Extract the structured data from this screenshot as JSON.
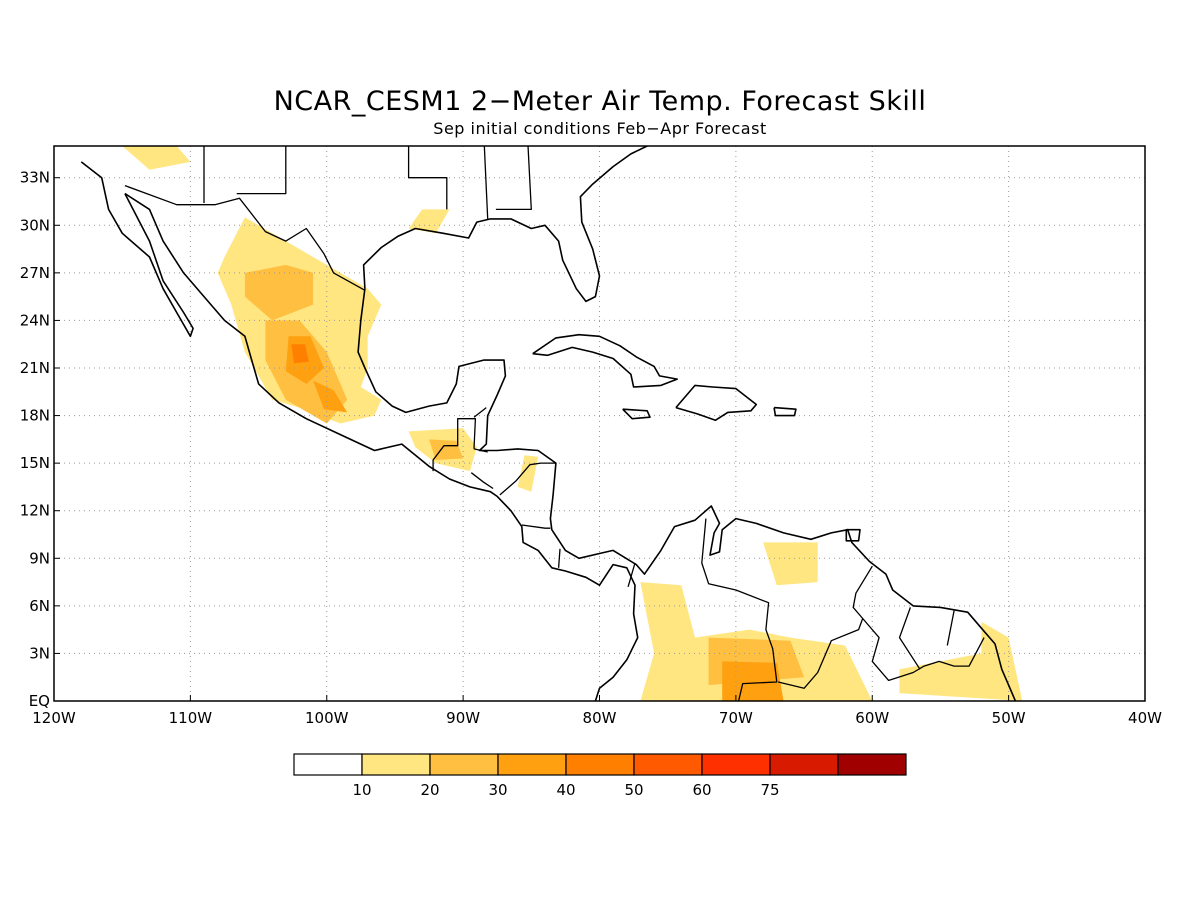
{
  "title": "NCAR_CESM1 2−Meter Air Temp. Forecast Skill",
  "subtitle": "Sep initial conditions  Feb−Apr Forecast",
  "map": {
    "lon_range": [
      -120,
      -40
    ],
    "lat_range": [
      0,
      35
    ],
    "lat_ticks": [
      {
        "value": 33,
        "label": "33N"
      },
      {
        "value": 30,
        "label": "30N"
      },
      {
        "value": 27,
        "label": "27N"
      },
      {
        "value": 24,
        "label": "24N"
      },
      {
        "value": 21,
        "label": "21N"
      },
      {
        "value": 18,
        "label": "18N"
      },
      {
        "value": 15,
        "label": "15N"
      },
      {
        "value": 12,
        "label": "12N"
      },
      {
        "value": 9,
        "label": "9N"
      },
      {
        "value": 6,
        "label": "6N"
      },
      {
        "value": 3,
        "label": "3N"
      },
      {
        "value": 0,
        "label": "EQ"
      }
    ],
    "lon_ticks": [
      {
        "value": -120,
        "label": "120W"
      },
      {
        "value": -110,
        "label": "110W"
      },
      {
        "value": -100,
        "label": "100W"
      },
      {
        "value": -90,
        "label": "90W"
      },
      {
        "value": -80,
        "label": "80W"
      },
      {
        "value": -70,
        "label": "70W"
      },
      {
        "value": -60,
        "label": "60W"
      },
      {
        "value": -50,
        "label": "50W"
      },
      {
        "value": -40,
        "label": "40W"
      }
    ],
    "grid": true
  },
  "colorbar": {
    "colors": [
      "#ffffff",
      "#ffe680",
      "#ffbf40",
      "#ffa010",
      "#ff8000",
      "#ff5a00",
      "#ff3000",
      "#d81a00",
      "#a00000"
    ],
    "labels": [
      "10",
      "20",
      "30",
      "40",
      "50",
      "60",
      "75"
    ]
  },
  "skill_regions": [
    {
      "level": 1,
      "lonlat": [
        [
          -107.5,
          28
        ],
        [
          -106,
          30.5
        ],
        [
          -103,
          29
        ],
        [
          -99,
          27
        ],
        [
          -97,
          26
        ],
        [
          -96,
          25
        ],
        [
          -97,
          23
        ],
        [
          -97,
          21
        ],
        [
          -97.5,
          19.8
        ],
        [
          -96,
          19
        ],
        [
          -96.5,
          18
        ],
        [
          -99,
          17.5
        ],
        [
          -102,
          18.5
        ],
        [
          -104,
          19
        ],
        [
          -106,
          22
        ],
        [
          -107,
          25
        ],
        [
          -108,
          27
        ]
      ]
    },
    {
      "level": 1,
      "lonlat": [
        [
          -115,
          35
        ],
        [
          -111,
          35
        ],
        [
          -110,
          34
        ],
        [
          -113,
          33.5
        ]
      ]
    },
    {
      "level": 1,
      "lonlat": [
        [
          -93,
          31
        ],
        [
          -91,
          31
        ],
        [
          -92,
          29.5
        ],
        [
          -94,
          29.8
        ]
      ]
    },
    {
      "level": 1,
      "lonlat": [
        [
          -94,
          17
        ],
        [
          -90,
          17.2
        ],
        [
          -89,
          16
        ],
        [
          -89.5,
          14.5
        ],
        [
          -92,
          15
        ],
        [
          -93.5,
          16
        ]
      ]
    },
    {
      "level": 1,
      "lonlat": [
        [
          -85.5,
          15.5
        ],
        [
          -84.5,
          15.4
        ],
        [
          -85,
          13.2
        ],
        [
          -86,
          13.5
        ]
      ]
    },
    {
      "level": 1,
      "lonlat": [
        [
          -77,
          7.5
        ],
        [
          -74,
          7.3
        ],
        [
          -73,
          4
        ],
        [
          -69,
          4.5
        ],
        [
          -66,
          4
        ],
        [
          -62,
          3.5
        ],
        [
          -60,
          0
        ],
        [
          -77,
          0
        ],
        [
          -76,
          3
        ]
      ]
    },
    {
      "level": 1,
      "lonlat": [
        [
          -68,
          10
        ],
        [
          -64,
          10
        ],
        [
          -64,
          7.5
        ],
        [
          -67,
          7.3
        ]
      ]
    },
    {
      "level": 1,
      "lonlat": [
        [
          -58,
          2
        ],
        [
          -52,
          3
        ],
        [
          -52,
          5
        ],
        [
          -50,
          4
        ],
        [
          -49,
          0
        ],
        [
          -58,
          0.5
        ]
      ]
    },
    {
      "level": 2,
      "lonlat": [
        [
          -106,
          27
        ],
        [
          -103,
          27.5
        ],
        [
          -101,
          27
        ],
        [
          -101,
          25
        ],
        [
          -104,
          24
        ],
        [
          -106,
          25.5
        ]
      ]
    },
    {
      "level": 2,
      "lonlat": [
        [
          -104.5,
          24
        ],
        [
          -102,
          24
        ],
        [
          -100,
          22
        ],
        [
          -98.5,
          19
        ],
        [
          -100,
          17.5
        ],
        [
          -103,
          19
        ],
        [
          -104.5,
          21.5
        ]
      ]
    },
    {
      "level": 2,
      "lonlat": [
        [
          -92.5,
          16.5
        ],
        [
          -90.5,
          16.4
        ],
        [
          -90,
          15.3
        ],
        [
          -92,
          15.2
        ]
      ]
    },
    {
      "level": 2,
      "lonlat": [
        [
          -72,
          4
        ],
        [
          -66,
          3.8
        ],
        [
          -65,
          1.5
        ],
        [
          -72,
          1
        ]
      ]
    },
    {
      "level": 3,
      "lonlat": [
        [
          -102.8,
          23
        ],
        [
          -101.2,
          23
        ],
        [
          -100.2,
          21
        ],
        [
          -101.5,
          20
        ],
        [
          -103,
          20.8
        ]
      ]
    },
    {
      "level": 3,
      "lonlat": [
        [
          -101,
          20.2
        ],
        [
          -99.5,
          19.6
        ],
        [
          -98.5,
          18.2
        ],
        [
          -100.2,
          18.4
        ]
      ]
    },
    {
      "level": 3,
      "lonlat": [
        [
          -71,
          2.5
        ],
        [
          -67,
          2.4
        ],
        [
          -66.5,
          0
        ],
        [
          -71,
          0
        ]
      ]
    },
    {
      "level": 4,
      "lonlat": [
        [
          -102.6,
          22.5
        ],
        [
          -101.6,
          22.5
        ],
        [
          -101.3,
          21.4
        ],
        [
          -102.4,
          21.3
        ]
      ]
    }
  ],
  "coastlines": [
    [
      [
        -118,
        34
      ],
      [
        -116.5,
        33
      ],
      [
        -116,
        31
      ],
      [
        -115,
        29.5
      ],
      [
        -113,
        28
      ],
      [
        -112,
        26
      ],
      [
        -111,
        24.5
      ],
      [
        -110,
        23
      ],
      [
        -109.8,
        23.5
      ],
      [
        -110.5,
        24.5
      ],
      [
        -112,
        26.5
      ],
      [
        -113,
        29
      ],
      [
        -114.5,
        31.5
      ],
      [
        -114.8,
        32
      ]
    ],
    [
      [
        -114.8,
        32
      ],
      [
        -113,
        31
      ],
      [
        -112,
        29
      ],
      [
        -110.5,
        27
      ],
      [
        -109,
        25.5
      ],
      [
        -107.5,
        24
      ],
      [
        -106,
        23
      ],
      [
        -105.5,
        21.5
      ],
      [
        -105,
        20
      ],
      [
        -103.5,
        18.8
      ],
      [
        -101.5,
        17.8
      ],
      [
        -99,
        16.8
      ],
      [
        -96.5,
        15.8
      ],
      [
        -94.5,
        16.2
      ],
      [
        -92.5,
        14.8
      ],
      [
        -91,
        14
      ],
      [
        -89.5,
        13.5
      ],
      [
        -88,
        13.2
      ],
      [
        -87.5,
        12.9
      ],
      [
        -86.5,
        12
      ],
      [
        -85.7,
        11
      ],
      [
        -85.6,
        10
      ],
      [
        -84.5,
        9.5
      ],
      [
        -83.5,
        8.4
      ],
      [
        -82.5,
        8.2
      ],
      [
        -81,
        7.8
      ],
      [
        -80,
        7.3
      ],
      [
        -79,
        8.6
      ],
      [
        -78,
        8.4
      ],
      [
        -77.4,
        7.3
      ],
      [
        -77.5,
        5.5
      ],
      [
        -77.2,
        4
      ],
      [
        -78,
        2.6
      ],
      [
        -79,
        1.5
      ],
      [
        -80,
        0.8
      ],
      [
        -80.3,
        0
      ]
    ],
    [
      [
        -97.2,
        26
      ],
      [
        -97.5,
        24
      ],
      [
        -97.7,
        22
      ],
      [
        -97.2,
        21
      ],
      [
        -96.4,
        19.5
      ],
      [
        -95.2,
        18.6
      ],
      [
        -94.2,
        18.2
      ],
      [
        -92.5,
        18.6
      ],
      [
        -91.2,
        18.8
      ],
      [
        -90.5,
        20
      ],
      [
        -90.3,
        21.1
      ],
      [
        -88.5,
        21.5
      ],
      [
        -87,
        21.5
      ],
      [
        -86.9,
        20.5
      ],
      [
        -87.5,
        19.3
      ],
      [
        -88.2,
        18
      ],
      [
        -88.3,
        16.2
      ],
      [
        -88.8,
        15.8
      ],
      [
        -87.5,
        15.8
      ],
      [
        -86,
        15.9
      ],
      [
        -84.5,
        15.8
      ],
      [
        -83.2,
        15
      ],
      [
        -83.4,
        13
      ],
      [
        -83.6,
        11.5
      ],
      [
        -83.5,
        10.8
      ],
      [
        -82.5,
        9.5
      ],
      [
        -81.5,
        9
      ],
      [
        -80,
        9.3
      ],
      [
        -79,
        9.5
      ],
      [
        -77.3,
        8.6
      ],
      [
        -76.7,
        8
      ],
      [
        -75.5,
        9.5
      ],
      [
        -74.5,
        11
      ],
      [
        -73,
        11.4
      ],
      [
        -71.8,
        12.3
      ],
      [
        -71.2,
        11.2
      ],
      [
        -71.6,
        10.6
      ],
      [
        -71.9,
        9.2
      ],
      [
        -71.2,
        9.4
      ],
      [
        -71,
        10.8
      ],
      [
        -70,
        11.5
      ],
      [
        -68.5,
        11.2
      ],
      [
        -66.5,
        10.6
      ],
      [
        -64.5,
        10.2
      ],
      [
        -63,
        10.6
      ],
      [
        -61.8,
        10.8
      ],
      [
        -61.5,
        10
      ],
      [
        -60.2,
        8.8
      ],
      [
        -59,
        8
      ],
      [
        -58.5,
        7
      ],
      [
        -57,
        6
      ],
      [
        -55,
        5.9
      ],
      [
        -53,
        5.6
      ],
      [
        -51.7,
        4.3
      ],
      [
        -51,
        3.6
      ],
      [
        -50.5,
        2
      ],
      [
        -50,
        1
      ],
      [
        -49.5,
        0
      ]
    ],
    [
      [
        -80.3,
        0
      ],
      [
        -80.1,
        -0.6
      ]
    ],
    [
      [
        -97.2,
        26
      ],
      [
        -97.3,
        27.5
      ],
      [
        -96,
        28.6
      ],
      [
        -94.8,
        29.3
      ],
      [
        -93.5,
        29.8
      ],
      [
        -91.5,
        29.5
      ],
      [
        -89.6,
        29.2
      ],
      [
        -89,
        30.2
      ],
      [
        -88,
        30.4
      ],
      [
        -86.5,
        30.4
      ],
      [
        -85,
        29.8
      ],
      [
        -84,
        30
      ],
      [
        -83,
        29
      ],
      [
        -82.7,
        27.8
      ],
      [
        -81.7,
        26
      ],
      [
        -81,
        25.2
      ],
      [
        -80.3,
        25.5
      ],
      [
        -80,
        26.8
      ],
      [
        -80.5,
        28.5
      ],
      [
        -81.3,
        30.2
      ],
      [
        -81.4,
        31.8
      ],
      [
        -80.5,
        32.6
      ],
      [
        -79,
        33.7
      ],
      [
        -77.7,
        34.5
      ],
      [
        -76.5,
        35
      ]
    ],
    [
      [
        -84.9,
        21.9
      ],
      [
        -83.2,
        22.9
      ],
      [
        -81.5,
        23.1
      ],
      [
        -80,
        23
      ],
      [
        -78.5,
        22.4
      ],
      [
        -77.3,
        21.7
      ],
      [
        -76,
        21.1
      ],
      [
        -75.6,
        20.5
      ],
      [
        -74.3,
        20.3
      ],
      [
        -75.5,
        19.9
      ],
      [
        -77.5,
        19.8
      ],
      [
        -77.7,
        20.6
      ],
      [
        -79,
        21.6
      ],
      [
        -80.5,
        22
      ],
      [
        -82,
        22.3
      ],
      [
        -83.8,
        21.8
      ],
      [
        -84.9,
        21.9
      ]
    ],
    [
      [
        -74.4,
        18.5
      ],
      [
        -73,
        19.9
      ],
      [
        -71.7,
        19.8
      ],
      [
        -70,
        19.7
      ],
      [
        -68.5,
        18.7
      ],
      [
        -68.9,
        18.3
      ],
      [
        -70.6,
        18.2
      ],
      [
        -71.5,
        17.7
      ],
      [
        -72.8,
        18.1
      ],
      [
        -74.4,
        18.5
      ]
    ],
    [
      [
        -78.3,
        18.4
      ],
      [
        -76.5,
        18.3
      ],
      [
        -76.3,
        17.9
      ],
      [
        -77.6,
        17.8
      ],
      [
        -78.3,
        18.4
      ]
    ],
    [
      [
        -67.2,
        18.5
      ],
      [
        -65.6,
        18.4
      ],
      [
        -65.7,
        18
      ],
      [
        -67.1,
        18
      ],
      [
        -67.2,
        18.5
      ]
    ],
    [
      [
        -61.9,
        10.8
      ],
      [
        -60.9,
        10.8
      ],
      [
        -61,
        10.1
      ],
      [
        -61.9,
        10.1
      ],
      [
        -61.9,
        10.8
      ]
    ]
  ],
  "borders": [
    [
      [
        -114.8,
        32.5
      ],
      [
        -111,
        31.3
      ],
      [
        -108.2,
        31.3
      ],
      [
        -106.4,
        31.7
      ],
      [
        -104.5,
        29.6
      ],
      [
        -103,
        29
      ],
      [
        -101.5,
        29.8
      ],
      [
        -100.2,
        28.2
      ],
      [
        -99.5,
        27
      ],
      [
        -97.2,
        25.9
      ]
    ],
    [
      [
        -92.2,
        14.5
      ],
      [
        -92.2,
        15.2
      ],
      [
        -91.4,
        16.1
      ],
      [
        -90.4,
        16.1
      ],
      [
        -90.4,
        17.8
      ],
      [
        -89.1,
        17.8
      ],
      [
        -89.2,
        15.9
      ]
    ],
    [
      [
        -89.2,
        17.9
      ],
      [
        -88.3,
        18.5
      ]
    ],
    [
      [
        -89.2,
        15.9
      ],
      [
        -88.2,
        15.7
      ]
    ],
    [
      [
        -89.4,
        14.4
      ],
      [
        -88.5,
        13.8
      ],
      [
        -87.8,
        13.4
      ]
    ],
    [
      [
        -87.3,
        13
      ],
      [
        -86.1,
        13.9
      ],
      [
        -85.1,
        14.9
      ],
      [
        -84.3,
        15
      ],
      [
        -83.2,
        15
      ]
    ],
    [
      [
        -85.7,
        11.1
      ],
      [
        -84,
        10.9
      ],
      [
        -83.6,
        10.9
      ]
    ],
    [
      [
        -83,
        8.4
      ],
      [
        -82.9,
        9.6
      ]
    ],
    [
      [
        -77.4,
        8.7
      ],
      [
        -77.9,
        7.2
      ]
    ],
    [
      [
        -72.2,
        11.5
      ],
      [
        -72.5,
        8.7
      ],
      [
        -72,
        7.4
      ],
      [
        -70,
        7
      ],
      [
        -67.6,
        6.2
      ],
      [
        -67.8,
        4.5
      ],
      [
        -67.3,
        3.3
      ],
      [
        -67,
        1.2
      ],
      [
        -69.5,
        1.1
      ],
      [
        -69.8,
        0
      ]
    ],
    [
      [
        -66.9,
        1.2
      ],
      [
        -65,
        0.8
      ],
      [
        -64,
        1.8
      ],
      [
        -63,
        3.8
      ],
      [
        -61,
        4.5
      ],
      [
        -60.7,
        5.2
      ],
      [
        -61.4,
        5.9
      ],
      [
        -61.2,
        6.8
      ],
      [
        -60,
        8.5
      ]
    ],
    [
      [
        -60.7,
        5.2
      ],
      [
        -59.5,
        4
      ],
      [
        -60,
        2.5
      ],
      [
        -58.8,
        1.3
      ],
      [
        -57,
        1.8
      ],
      [
        -56.2,
        2.2
      ],
      [
        -55.1,
        2.5
      ],
      [
        -54,
        2.2
      ],
      [
        -52.9,
        2.2
      ],
      [
        -51.8,
        4
      ]
    ],
    [
      [
        -57.2,
        5.9
      ],
      [
        -58,
        4
      ],
      [
        -56.5,
        2
      ]
    ],
    [
      [
        -54,
        5.7
      ],
      [
        -54.5,
        3.5
      ]
    ],
    [
      [
        -103,
        36
      ],
      [
        -103,
        32
      ],
      [
        -106.6,
        32
      ]
    ],
    [
      [
        -109,
        36
      ],
      [
        -109,
        31.4
      ]
    ],
    [
      [
        -94,
        36
      ],
      [
        -94,
        33
      ],
      [
        -91.2,
        33
      ],
      [
        -91.2,
        31
      ]
    ],
    [
      [
        -88.5,
        36
      ],
      [
        -88.2,
        30.4
      ]
    ],
    [
      [
        -85.3,
        36
      ],
      [
        -85,
        31
      ],
      [
        -87.6,
        31
      ]
    ]
  ]
}
